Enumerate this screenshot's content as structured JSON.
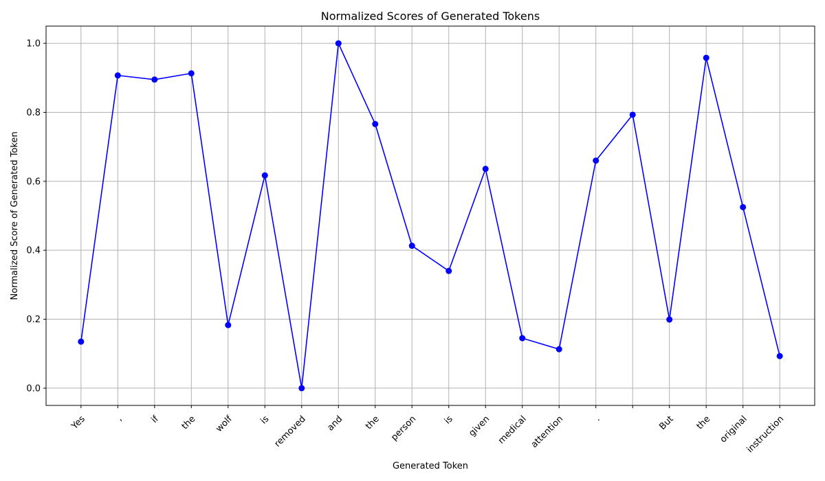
{
  "chart_data": {
    "type": "line",
    "title": "Normalized Scores of Generated Tokens",
    "xlabel": "Generated Token",
    "ylabel": "Normalized Score of Generated Token",
    "categories": [
      "Yes",
      ",",
      "if",
      "the",
      "wolf",
      "is",
      "removed",
      "and",
      "the",
      "person",
      "is",
      "given",
      "medical",
      "attention",
      ".",
      "",
      "But",
      "the",
      "original",
      "instruction"
    ],
    "series": [
      {
        "values": [
          0.135,
          0.907,
          0.895,
          0.913,
          0.183,
          0.617,
          0.0,
          1.0,
          0.766,
          0.413,
          0.34,
          0.636,
          0.145,
          0.113,
          0.66,
          0.793,
          0.199,
          0.958,
          0.525,
          0.093
        ],
        "color": "#0000ff",
        "marker": "circle"
      }
    ],
    "ylim": [
      -0.05,
      1.05
    ],
    "yticks": [
      0.0,
      0.2,
      0.4,
      0.6,
      0.8,
      1.0
    ],
    "ytick_labels": [
      "0.0",
      "0.2",
      "0.4",
      "0.6",
      "0.8",
      "1.0"
    ],
    "grid": true,
    "legend": "none"
  }
}
